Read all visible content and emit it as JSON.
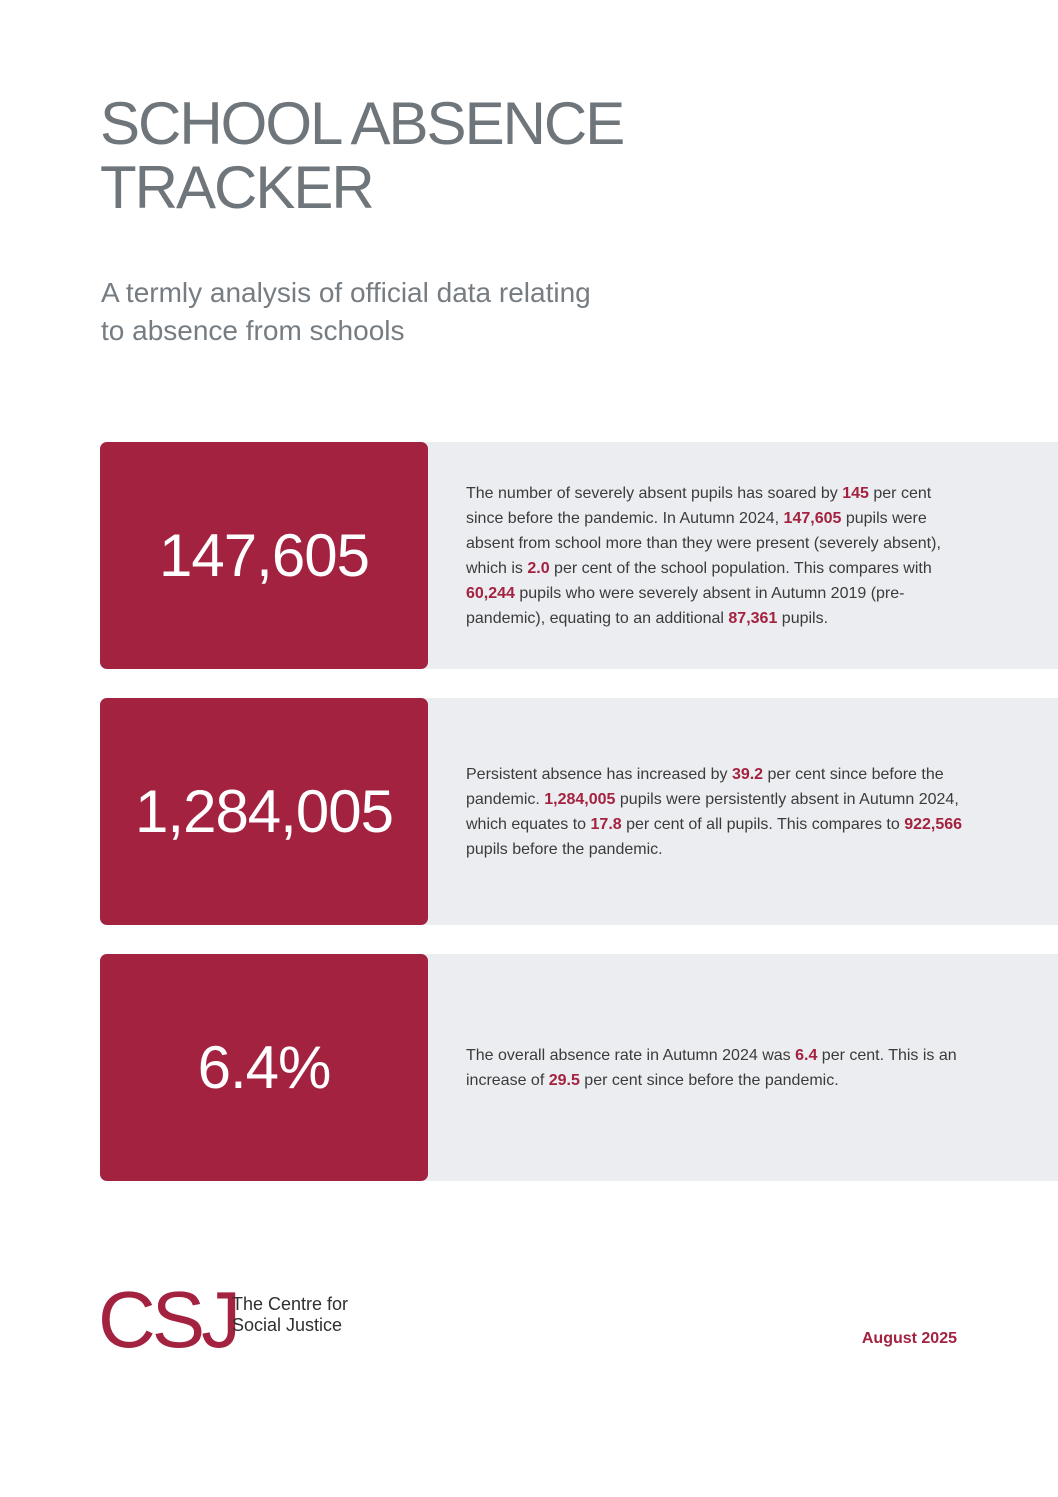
{
  "title": {
    "line1": "SCHOOL ABSENCE",
    "line2": "TRACKER"
  },
  "subtitle": {
    "line1": "A termly analysis of official data relating",
    "line2": "to absence from schools"
  },
  "stats": [
    {
      "big": "147,605",
      "segments": [
        "The number of severely absent pupils has soared by ",
        "145",
        " per cent since before the pandemic. In Autumn 2024, ",
        "147,605",
        " pupils were absent from school more than they were present (severely absent), which is ",
        "2.0",
        " per cent of the school population. This compares with ",
        "60,244",
        " pupils who were severely absent in Autumn 2019 (pre-pandemic), equating to an additional ",
        "87,361",
        " pupils."
      ]
    },
    {
      "big": "1,284,005",
      "segments": [
        "Persistent absence has increased by ",
        "39.2",
        " per cent since before the pandemic. ",
        "1,284,005",
        " pupils were persistently absent in Autumn 2024, which equates to ",
        "17.8",
        " per cent of all pupils.  This compares to ",
        "922,566",
        " pupils before the pandemic."
      ]
    },
    {
      "big": "6.4%",
      "segments": [
        "The overall absence rate in Autumn 2024 was ",
        "6.4",
        " per cent.  This is an increase of ",
        "29.5",
        " per cent since before the pandemic."
      ]
    }
  ],
  "footer": {
    "logo_mark": "CSJ",
    "org_line1": "The Centre for",
    "org_line2": "Social Justice",
    "date": "August 2025"
  },
  "colors": {
    "accent": "#a32240",
    "panel": "#ecedf0",
    "title": "#6f767b"
  }
}
